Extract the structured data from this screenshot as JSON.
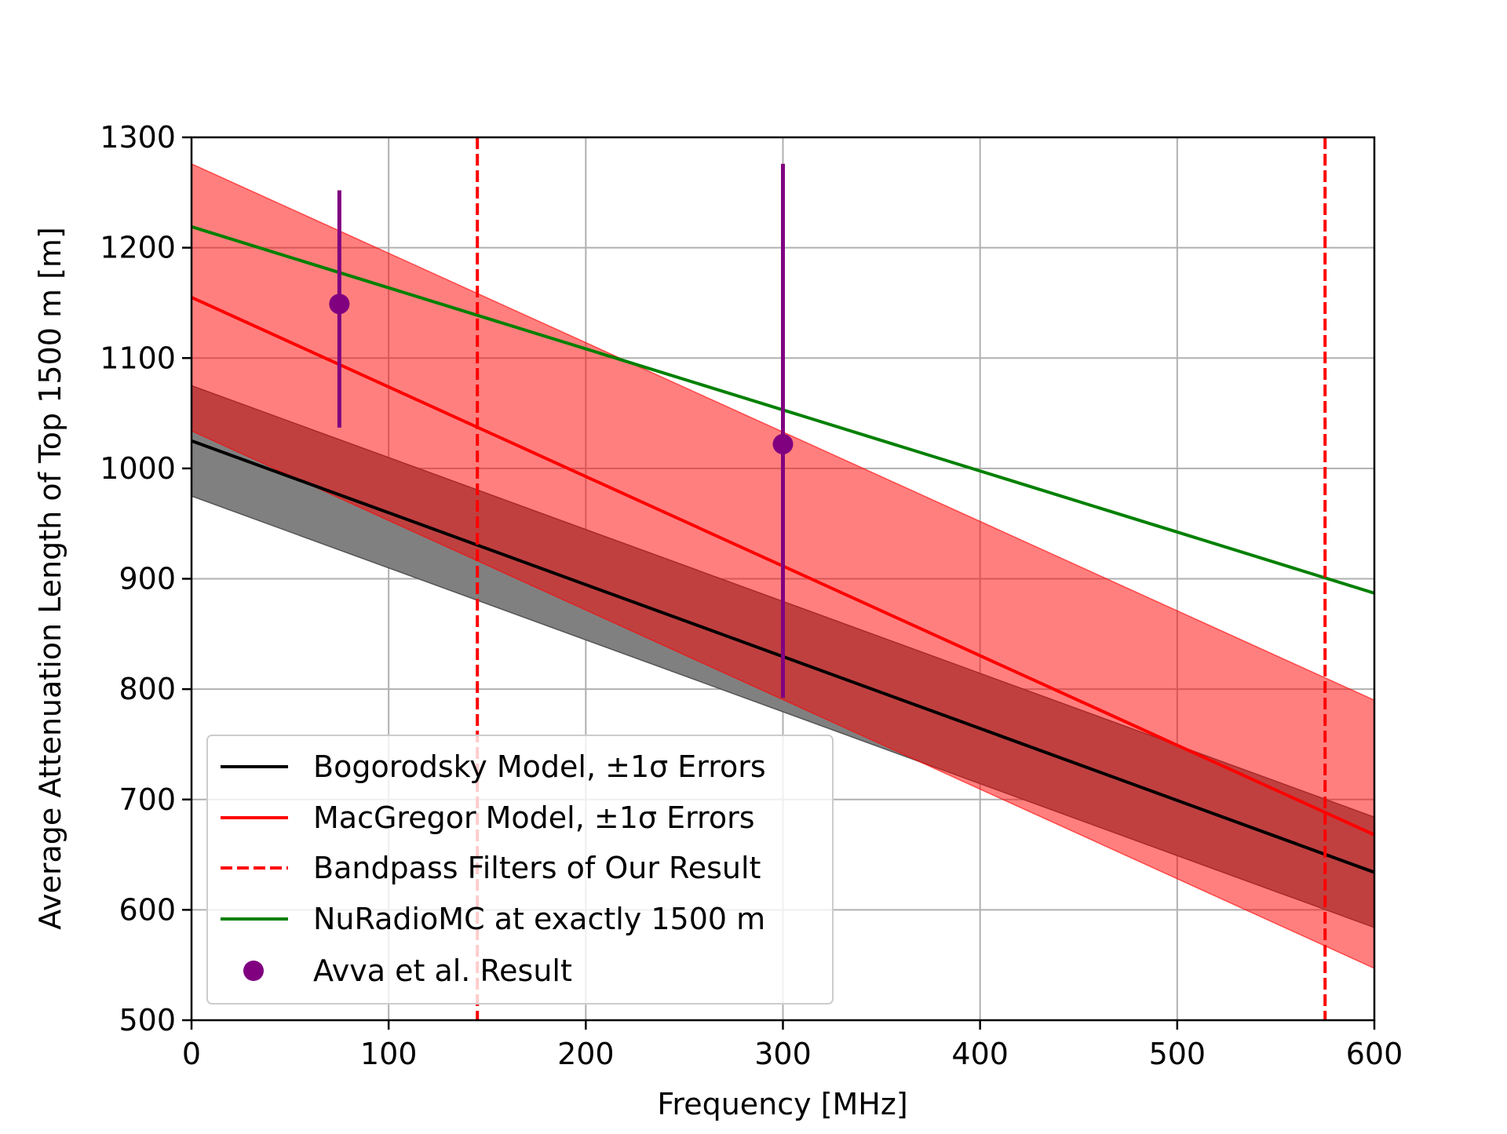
{
  "chart_data": {
    "type": "line",
    "title": "",
    "xlabel": "Frequency [MHz]",
    "ylabel": "Average Attenuation Length of Top 1500 m [m]",
    "xlim": [
      0,
      600
    ],
    "ylim": [
      500,
      1300
    ],
    "xticks": [
      0,
      100,
      200,
      300,
      400,
      500,
      600
    ],
    "yticks": [
      500,
      600,
      700,
      800,
      900,
      1000,
      1100,
      1200,
      1300
    ],
    "xtick_labels": [
      "0",
      "100",
      "200",
      "300",
      "400",
      "500",
      "600"
    ],
    "ytick_labels": [
      "500",
      "600",
      "700",
      "800",
      "900",
      "1000",
      "1100",
      "1200",
      "1300"
    ],
    "grid": true,
    "legend_position": "lower-left",
    "series": [
      {
        "name": "Bogorodsky Model, ±1σ Errors",
        "kind": "line_with_band",
        "color": "#000000",
        "band_color": "#808080",
        "x": [
          0,
          600
        ],
        "y": [
          1025,
          634
        ],
        "band_upper": [
          1075,
          684
        ],
        "band_lower": [
          975,
          584
        ]
      },
      {
        "name": "MacGregor Model, ±1σ Errors",
        "kind": "line_with_band",
        "color": "#ff0000",
        "band_color": "#ff8080",
        "x": [
          0,
          600
        ],
        "y": [
          1155,
          668
        ],
        "band_upper": [
          1276,
          790
        ],
        "band_lower": [
          1034,
          547
        ]
      },
      {
        "name": "Bandpass Filters of Our Result",
        "kind": "vlines",
        "color": "#ff0000",
        "dashed": true,
        "x": [
          145,
          575
        ]
      },
      {
        "name": "NuRadioMC at exactly 1500 m",
        "kind": "line",
        "color": "#008000",
        "x": [
          0,
          600
        ],
        "y": [
          1219,
          887
        ]
      },
      {
        "name": "Avva et al. Result",
        "kind": "errorbar",
        "color": "#800080",
        "x": [
          75,
          300
        ],
        "y": [
          1149,
          1022
        ],
        "yerr_low": [
          1037,
          792
        ],
        "yerr_high": [
          1252,
          1276
        ]
      }
    ]
  }
}
